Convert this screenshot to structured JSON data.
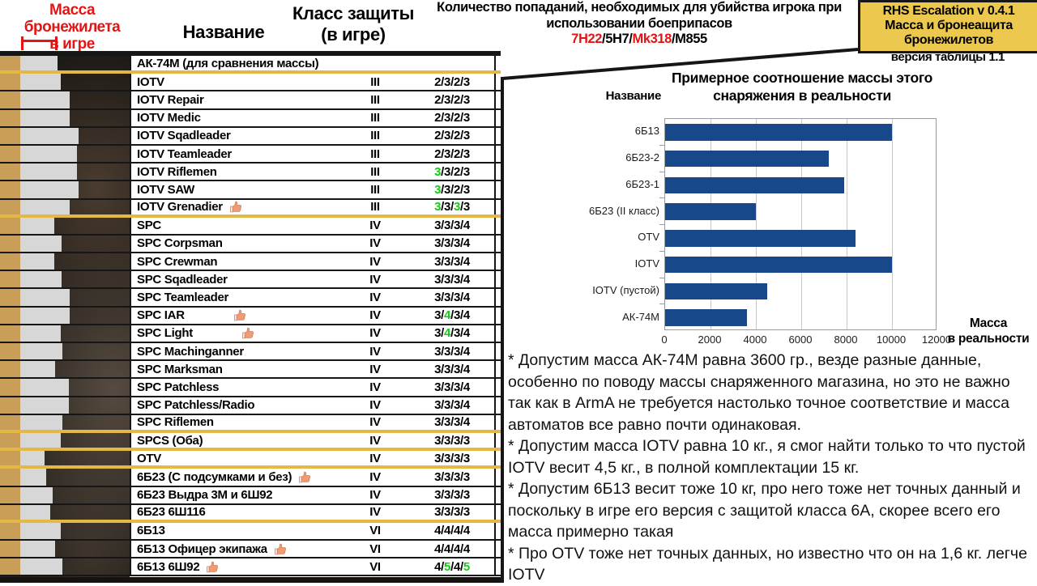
{
  "colors": {
    "accent_red": "#e41414",
    "hit_green": "#12cd12",
    "gold_bar": "#c89e58",
    "grey_bar": "#d7d7d7",
    "separator_gold": "#e3b844",
    "title_box_bg": "#ecc94e",
    "chart_bar": "#17498a"
  },
  "header": {
    "mass_col": {
      "line1": "Масса бронежилета",
      "line2": "в игре"
    },
    "name_col": "Название",
    "class_col": {
      "line1": "Класс защиты",
      "line2": "(в игре)"
    },
    "hits_col": {
      "line1": "Количество попаданий, необходимых для убийства игрока при",
      "line2": "использовании боеприпасов",
      "ammo": [
        {
          "text": "7Н22",
          "red": true
        },
        {
          "text": "5Н7",
          "red": false
        },
        {
          "text": "Mk318",
          "red": true
        },
        {
          "text": "M855",
          "red": false
        }
      ]
    },
    "title_box": {
      "line1": "RHS Escalation v 0.4.1",
      "line2": "Масса и бронеащита",
      "line3": "бронежилетов"
    },
    "version": "версия таблицы 1.1"
  },
  "table": {
    "rows": [
      {
        "name": "АК-74М (для сравнения массы)",
        "cls": "",
        "hits": [],
        "thumb": false,
        "bar": 71,
        "sep": "gold"
      },
      {
        "name": "IOTV",
        "cls": "III",
        "hits": [
          {
            "v": "2"
          },
          {
            "v": "3"
          },
          {
            "v": "2"
          },
          {
            "v": "3"
          }
        ],
        "bar": 75
      },
      {
        "name": "IOTV Repair",
        "cls": "III",
        "hits": [
          {
            "v": "2"
          },
          {
            "v": "3"
          },
          {
            "v": "2"
          },
          {
            "v": "3"
          }
        ],
        "bar": 86
      },
      {
        "name": "IOTV Medic",
        "cls": "III",
        "hits": [
          {
            "v": "2"
          },
          {
            "v": "3"
          },
          {
            "v": "2"
          },
          {
            "v": "3"
          }
        ],
        "bar": 86
      },
      {
        "name": "IOTV Sqadleader",
        "cls": "III",
        "hits": [
          {
            "v": "2"
          },
          {
            "v": "3"
          },
          {
            "v": "2"
          },
          {
            "v": "3"
          }
        ],
        "bar": 97
      },
      {
        "name": "IOTV Teamleader",
        "cls": "III",
        "hits": [
          {
            "v": "2"
          },
          {
            "v": "3"
          },
          {
            "v": "2"
          },
          {
            "v": "3"
          }
        ],
        "bar": 95
      },
      {
        "name": "IOTV Riflemen",
        "cls": "III",
        "hits": [
          {
            "v": "3",
            "g": true
          },
          {
            "v": "3"
          },
          {
            "v": "2"
          },
          {
            "v": "3"
          }
        ],
        "bar": 95
      },
      {
        "name": "IOTV SAW",
        "cls": "III",
        "hits": [
          {
            "v": "3",
            "g": true
          },
          {
            "v": "3"
          },
          {
            "v": "2"
          },
          {
            "v": "3"
          }
        ],
        "bar": 97
      },
      {
        "name": "IOTV Grenadier",
        "cls": "III",
        "hits": [
          {
            "v": "3",
            "g": true
          },
          {
            "v": "3"
          },
          {
            "v": "3",
            "g": true
          },
          {
            "v": "3"
          }
        ],
        "thumb": true,
        "bar": 86,
        "sep": "gold"
      },
      {
        "name": "SPC",
        "cls": "IV",
        "hits": [
          {
            "v": "3"
          },
          {
            "v": "3"
          },
          {
            "v": "3"
          },
          {
            "v": "4"
          }
        ],
        "bar": 67
      },
      {
        "name": "SPC Corpsman",
        "cls": "IV",
        "hits": [
          {
            "v": "3"
          },
          {
            "v": "3"
          },
          {
            "v": "3"
          },
          {
            "v": "4"
          }
        ],
        "bar": 76
      },
      {
        "name": "SPC Crewman",
        "cls": "IV",
        "hits": [
          {
            "v": "3"
          },
          {
            "v": "3"
          },
          {
            "v": "3"
          },
          {
            "v": "4"
          }
        ],
        "bar": 67
      },
      {
        "name": "SPC Sqadleader",
        "cls": "IV",
        "hits": [
          {
            "v": "3"
          },
          {
            "v": "3"
          },
          {
            "v": "3"
          },
          {
            "v": "4"
          }
        ],
        "bar": 76
      },
      {
        "name": "SPC Teamleader",
        "cls": "IV",
        "hits": [
          {
            "v": "3"
          },
          {
            "v": "3"
          },
          {
            "v": "3"
          },
          {
            "v": "4"
          }
        ],
        "bar": 86
      },
      {
        "name": "SPC IAR",
        "cls": "IV",
        "hits": [
          {
            "v": "3"
          },
          {
            "v": "4",
            "g": true
          },
          {
            "v": "3"
          },
          {
            "v": "4"
          }
        ],
        "thumb": true,
        "thumb_tab": true,
        "bar": 86
      },
      {
        "name": "SPC Light",
        "cls": "IV",
        "hits": [
          {
            "v": "3"
          },
          {
            "v": "4",
            "g": true
          },
          {
            "v": "3"
          },
          {
            "v": "4"
          }
        ],
        "thumb": true,
        "thumb_tab": true,
        "bar": 75
      },
      {
        "name": "SPC Machinganner",
        "cls": "IV",
        "hits": [
          {
            "v": "3"
          },
          {
            "v": "3"
          },
          {
            "v": "3"
          },
          {
            "v": "4"
          }
        ],
        "bar": 77
      },
      {
        "name": "SPC Marksman",
        "cls": "IV",
        "hits": [
          {
            "v": "3"
          },
          {
            "v": "3"
          },
          {
            "v": "3"
          },
          {
            "v": "4"
          }
        ],
        "bar": 68
      },
      {
        "name": "SPC Patchless",
        "cls": "IV",
        "hits": [
          {
            "v": "3"
          },
          {
            "v": "3"
          },
          {
            "v": "3"
          },
          {
            "v": "4"
          }
        ],
        "bar": 85
      },
      {
        "name": "SPC Patchless/Radio",
        "cls": "IV",
        "hits": [
          {
            "v": "3"
          },
          {
            "v": "3"
          },
          {
            "v": "3"
          },
          {
            "v": "4"
          }
        ],
        "bar": 85
      },
      {
        "name": "SPC Riflemen",
        "cls": "IV",
        "hits": [
          {
            "v": "3"
          },
          {
            "v": "3"
          },
          {
            "v": "3"
          },
          {
            "v": "4"
          }
        ],
        "bar": 77,
        "sep": "gold"
      },
      {
        "name": "SPCS (Оба)",
        "cls": "IV",
        "hits": [
          {
            "v": "3"
          },
          {
            "v": "3"
          },
          {
            "v": "3"
          },
          {
            "v": "3"
          }
        ],
        "bar": 75,
        "sep": "gold"
      },
      {
        "name": "OTV",
        "cls": "IV",
        "hits": [
          {
            "v": "3"
          },
          {
            "v": "3"
          },
          {
            "v": "3"
          },
          {
            "v": "3"
          }
        ],
        "bar": 55,
        "sep": "gold"
      },
      {
        "name": "6Б23 (С подсумками и без)",
        "cls": "IV",
        "hits": [
          {
            "v": "3"
          },
          {
            "v": "3"
          },
          {
            "v": "3"
          },
          {
            "v": "3"
          }
        ],
        "thumb": true,
        "bar": 57
      },
      {
        "name": "6Б23 Выдра 3М и 6Ш92",
        "cls": "IV",
        "hits": [
          {
            "v": "3"
          },
          {
            "v": "3"
          },
          {
            "v": "3"
          },
          {
            "v": "3"
          }
        ],
        "bar": 65
      },
      {
        "name": "6Б23 6Ш116",
        "cls": "IV",
        "hits": [
          {
            "v": "3"
          },
          {
            "v": "3"
          },
          {
            "v": "3"
          },
          {
            "v": "3"
          }
        ],
        "bar": 62,
        "sep": "gold"
      },
      {
        "name": "6Б13",
        "cls": "VI",
        "hits": [
          {
            "v": "4"
          },
          {
            "v": "4"
          },
          {
            "v": "4"
          },
          {
            "v": "4"
          }
        ],
        "bar": 75
      },
      {
        "name": "6Б13 Офицер экипажа",
        "cls": "VI",
        "hits": [
          {
            "v": "4"
          },
          {
            "v": "4"
          },
          {
            "v": "4"
          },
          {
            "v": "4"
          }
        ],
        "thumb": true,
        "bar": 68
      },
      {
        "name": "6Б13 6Ш92",
        "cls": "VI",
        "hits": [
          {
            "v": "4"
          },
          {
            "v": "5",
            "g": true
          },
          {
            "v": "4"
          },
          {
            "v": "5",
            "g": true
          }
        ],
        "thumb": true,
        "bar": 77
      }
    ]
  },
  "chart_data": {
    "type": "bar",
    "orientation": "horizontal",
    "title": "Примерное соотношение массы этого снаряжения в реальности",
    "title_lines": [
      "Примерное соотношение массы этого",
      "снаряжения в реальности"
    ],
    "ylabel": "Название",
    "xlabel": "Масса в реальности",
    "xlabel_lines": [
      "Масса",
      "в реальности"
    ],
    "categories": [
      "6Б13",
      "6Б23-2",
      "6Б23-1",
      "6Б23 (II класс)",
      "OTV",
      "IOTV",
      "IOTV (пустой)",
      "АК-74М"
    ],
    "values": [
      10000,
      7200,
      7900,
      4000,
      8400,
      10000,
      4500,
      3600
    ],
    "xlim": [
      0,
      12000
    ],
    "xticks": [
      0,
      2000,
      4000,
      6000,
      8000,
      10000,
      12000
    ],
    "grid": true,
    "legend": false,
    "bar_color": "#17498a"
  },
  "notes": [
    "* Допустим масса АК-74М равна 3600 гр., везде разные данные, особенно по поводу массы снаряженного магазина, но это не важно так как в ArmA не требуется настолько точное соответствие и масса автоматов все равно почти одинаковая.",
    "* Допустим масса IOTV равна 10 кг., я смог найти только то что пустой IOTV весит 4,5 кг., в полной комплектации 15 кг.",
    "* Допустим 6Б13 весит тоже 10 кг, про него тоже нет точных данный и поскольку в игре его версия с защитой класса 6А, скорее всего его масса примерно такая",
    "* Про OTV тоже нет точных данных, но известно что он на 1,6 кг. легче IOTV"
  ]
}
